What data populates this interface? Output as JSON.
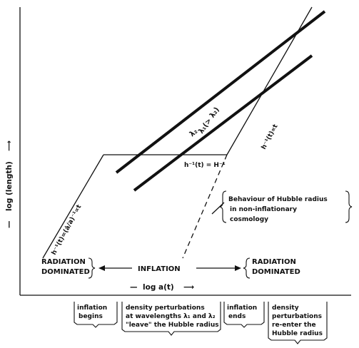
{
  "axes": {
    "x_label": "log a(t)",
    "y_label": "log (length)"
  },
  "lines": {
    "lambda1": "λ₁(> λ₂)",
    "lambda2": "λ₂",
    "hubble_const": "h⁻¹(t) = H⁻¹",
    "hubble_rad_early": "h⁻¹(t)=(ȧ/a)⁻¹∝t",
    "hubble_rad_late": "h⁻¹(t)∝t"
  },
  "annotation": {
    "line1": "Behaviour of Hubble radius",
    "line2": "in non-inflationary",
    "line3": "cosmology"
  },
  "phases": {
    "radiation_left_1": "RADIATION",
    "radiation_left_2": "DOMINATED",
    "inflation": "INFLATION",
    "radiation_right_1": "RADIATION",
    "radiation_right_2": "DOMINATED"
  },
  "bottom_labels": {
    "inflation_begins_1": "inflation",
    "inflation_begins_2": "begins",
    "perturb_leave_1": "density perturbations",
    "perturb_leave_2": "at wavelengths λ₁ and λ₂",
    "perturb_leave_3": "\"leave\" the Hubble radius",
    "inflation_ends_1": "inflation",
    "inflation_ends_2": "ends",
    "perturb_enter_1": "density",
    "perturb_enter_2": "perturbations",
    "perturb_enter_3": "re-enter the",
    "perturb_enter_4": "Hubble radius"
  }
}
